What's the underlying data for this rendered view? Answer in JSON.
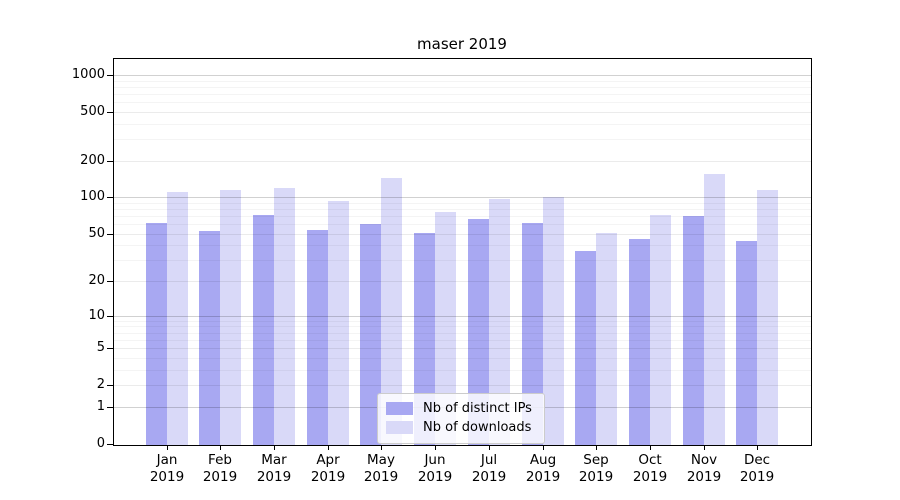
{
  "chart_data": {
    "type": "bar",
    "title": "maser 2019",
    "x_year": "2019",
    "categories": [
      "Jan",
      "Feb",
      "Mar",
      "Apr",
      "May",
      "Jun",
      "Jul",
      "Aug",
      "Sep",
      "Oct",
      "Nov",
      "Dec"
    ],
    "series": [
      {
        "name": "Nb of distinct IPs",
        "color": "#a8a8f2",
        "values": [
          61,
          53,
          72,
          54,
          60,
          51,
          66,
          62,
          36,
          45,
          70,
          44
        ]
      },
      {
        "name": "Nb of downloads",
        "color": "#d9d9f8",
        "values": [
          111,
          115,
          119,
          94,
          143,
          76,
          97,
          101,
          51,
          72,
          156,
          114
        ]
      }
    ],
    "yscale": "log10(value+1)",
    "yticks": [
      0,
      1,
      2,
      5,
      10,
      20,
      50,
      100,
      200,
      500,
      1000
    ],
    "ylim": [
      0,
      1350
    ],
    "grid": true,
    "legend_position": "lower center"
  }
}
